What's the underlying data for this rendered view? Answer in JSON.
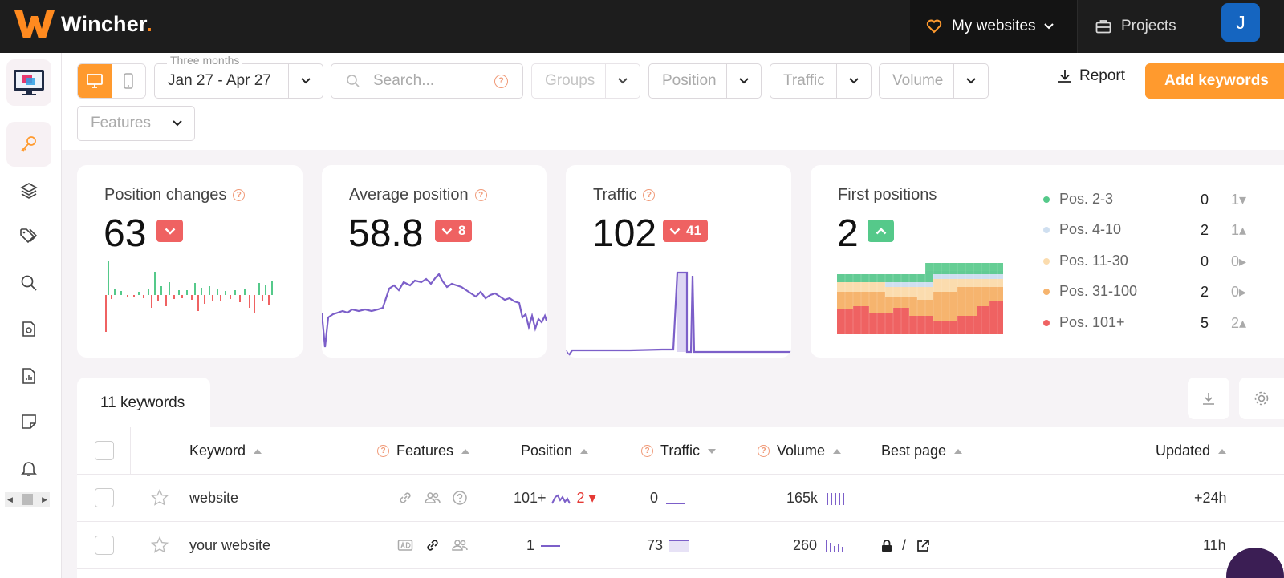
{
  "app": {
    "name": "Wincher",
    "logo_dot": "."
  },
  "topnav": {
    "my_websites": "My websites",
    "projects": "Projects",
    "avatar_initial": "J"
  },
  "toolbar": {
    "date_legend": "Three months",
    "date_range": "Jan 27 - Apr 27",
    "search_placeholder": "Search...",
    "groups_placeholder": "Groups",
    "position_placeholder": "Position",
    "traffic_placeholder": "Traffic",
    "volume_placeholder": "Volume",
    "features_placeholder": "Features",
    "report_label": "Report",
    "add_keywords_label": "Add keywords"
  },
  "cards": {
    "position_changes": {
      "title": "Position changes",
      "value": "63",
      "badge": ""
    },
    "average_position": {
      "title": "Average position",
      "value": "58.8",
      "badge": "8"
    },
    "traffic": {
      "title": "Traffic",
      "value": "102",
      "badge": "41"
    },
    "first_positions": {
      "title": "First positions",
      "value": "2",
      "legend": [
        {
          "label": "Pos. 2-3",
          "count": "0",
          "delta": "1",
          "color": "#55c98a"
        },
        {
          "label": "Pos. 4-10",
          "count": "2",
          "delta": "1",
          "color": "#cfdff0"
        },
        {
          "label": "Pos. 11-30",
          "count": "0",
          "delta": "0",
          "color": "#fbdcae"
        },
        {
          "label": "Pos. 31-100",
          "count": "2",
          "delta": "0",
          "color": "#f6b46e"
        },
        {
          "label": "Pos. 101+",
          "count": "5",
          "delta": "2",
          "color": "#ef6262"
        }
      ]
    }
  },
  "keywords_tab": {
    "label": "11 keywords"
  },
  "table": {
    "headers": {
      "keyword": "Keyword",
      "features": "Features",
      "position": "Position",
      "traffic": "Traffic",
      "volume": "Volume",
      "best_page": "Best page",
      "updated": "Updated"
    },
    "rows": [
      {
        "keyword": "website",
        "position": "101+",
        "position_delta": "2",
        "traffic": "0",
        "volume": "165k",
        "best_page": "",
        "updated": "+24h"
      },
      {
        "keyword": "your website",
        "position": "1",
        "position_delta": "",
        "traffic": "73",
        "volume": "260",
        "best_page": "/",
        "updated": "11h"
      }
    ]
  },
  "colors": {
    "accent": "#ff9a2e",
    "topbar": "#1d1d1d",
    "chart_line": "#7c5fc9",
    "up": "#55c98a",
    "down": "#ef6262"
  }
}
